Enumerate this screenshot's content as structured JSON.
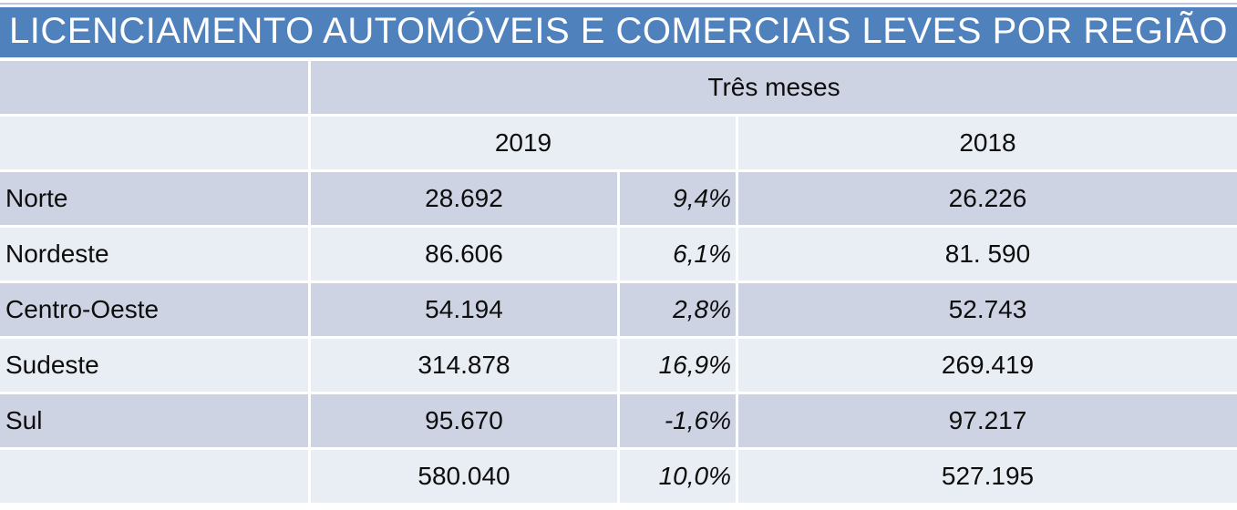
{
  "chart_data": {
    "type": "table",
    "title": "LICENCIAMENTO AUTOMÓVEIS E COMERCIAIS LEVES POR REGIÃO",
    "group_header": "Três meses",
    "col_headers": {
      "y2019": "2019",
      "y2018": "2018"
    },
    "rows": [
      {
        "region": "Norte",
        "v2019": "28.692",
        "pct": "9,4%",
        "v2018": "26.226"
      },
      {
        "region": "Nordeste",
        "v2019": "86.606",
        "pct": "6,1%",
        "v2018": "81. 590"
      },
      {
        "region": "Centro-Oeste",
        "v2019": "54.194",
        "pct": "2,8%",
        "v2018": "52.743"
      },
      {
        "region": "Sudeste",
        "v2019": "314.878",
        "pct": "16,9%",
        "v2018": "269.419"
      },
      {
        "region": "Sul",
        "v2019": "95.670",
        "pct": "-1,6%",
        "v2018": "97.217"
      }
    ],
    "total": {
      "v2019": "580.040",
      "pct": "10,0%",
      "v2018": "527.195"
    },
    "layout_hints": {
      "banded_rows": true,
      "grid": "white 3px separators"
    }
  },
  "colors": {
    "title_bar": "#4F81BD",
    "row_dark": "#CDD3E3",
    "row_light": "#E9EDF4",
    "top_line": "#9FB6D4",
    "text": "#0D0D0D",
    "title_text": "#FFFFFF"
  }
}
